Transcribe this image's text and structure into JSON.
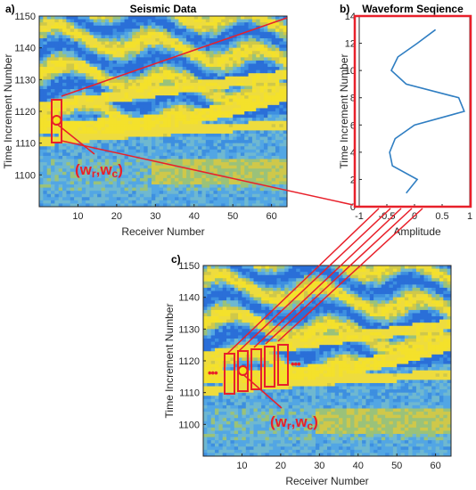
{
  "colors": {
    "red": "#e8202a",
    "yellow": "#f2dc2a",
    "blue": "#3b8ad8",
    "line": "#2f7ec2",
    "marker": "#f4e41c"
  },
  "chart_data": [
    {
      "id": "a",
      "type": "heatmap",
      "panel_label": "a)",
      "title": "Seismic Data",
      "xlabel": "Receiver Number",
      "ylabel": "Time Increment Number",
      "xlim": [
        0,
        64
      ],
      "ylim": [
        1090,
        1150
      ],
      "xticks": [
        "10",
        "20",
        "30",
        "40",
        "50",
        "60"
      ],
      "yticks": [
        "1100",
        "1110",
        "1120",
        "1130",
        "1140",
        "1150"
      ],
      "annotation": {
        "wr": "w",
        "wr_sub": "r",
        "wc": "w",
        "wc_sub": "c",
        "window_receiver": 11,
        "window_time": 1118
      }
    },
    {
      "id": "b",
      "type": "line",
      "panel_label": "b)",
      "title": "Waveform Seqience",
      "xlabel": "Amplitude",
      "ylabel": "Time Increment Number",
      "xlim": [
        -1,
        1
      ],
      "ylim": [
        0,
        14
      ],
      "xticks": [
        "-1",
        "-0.5",
        "0",
        "0.5",
        "1"
      ],
      "yticks": [
        "0",
        "2",
        "4",
        "6",
        "8",
        "10",
        "12",
        "14"
      ],
      "series": [
        {
          "x": [
            -0.15,
            0.05,
            -0.4,
            -0.45,
            -0.35,
            0.0,
            0.9,
            0.8,
            -0.15,
            -0.42,
            -0.3,
            0.05,
            0.38
          ],
          "y": [
            1,
            2,
            3,
            4,
            5,
            6,
            7,
            8,
            9,
            10,
            11,
            12,
            13
          ]
        }
      ]
    },
    {
      "id": "c",
      "type": "heatmap",
      "panel_label": "c)",
      "xlabel": "Receiver Number",
      "ylabel": "Time Increment Number",
      "xlim": [
        0,
        64
      ],
      "ylim": [
        1090,
        1150
      ],
      "xticks": [
        "10",
        "20",
        "30",
        "40",
        "50",
        "60"
      ],
      "yticks": [
        "1100",
        "1110",
        "1120",
        "1130",
        "1140",
        "1150"
      ],
      "annotation": {
        "wr": "w",
        "wr_sub": "r",
        "wc": "w",
        "wc_sub": "c",
        "window_receiver": 11,
        "window_time": 1118,
        "dots": "•••"
      }
    }
  ]
}
